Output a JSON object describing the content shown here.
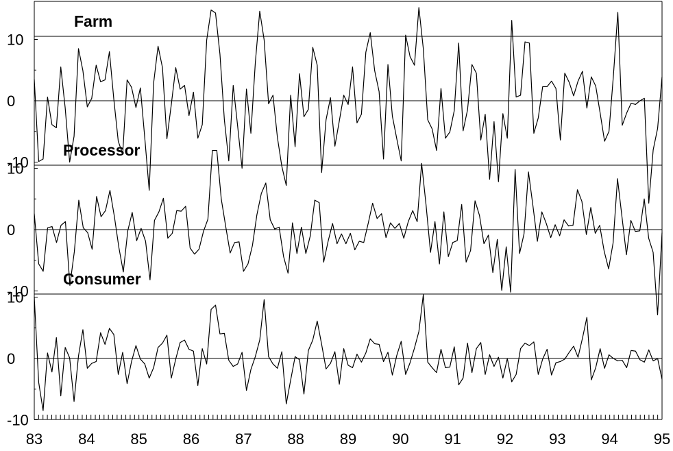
{
  "chart_data": {
    "type": "line",
    "x_ticks": [
      "83",
      "84",
      "85",
      "86",
      "87",
      "88",
      "89",
      "90",
      "91",
      "92",
      "93",
      "94",
      "95"
    ],
    "xlim": [
      83,
      95
    ],
    "panels": [
      {
        "title": "Farm",
        "ylim": [
          -10,
          10
        ],
        "y_ticks": [
          "10",
          "0",
          "-10"
        ],
        "values": [
          3.5,
          -9.9,
          -9.5,
          0.6,
          -3.9,
          -4.4,
          5.5,
          -1.2,
          -10,
          -5.8,
          8.5,
          4.9,
          -1.0,
          0.4,
          5.8,
          3.1,
          3.4,
          8.0,
          0.2,
          -6.6,
          -8.7,
          3.4,
          2.2,
          -1.1,
          2.1,
          -6.1,
          -14.6,
          2.9,
          8.9,
          5.4,
          -6.2,
          -0.6,
          5.4,
          1.9,
          2.5,
          -2.4,
          1.4,
          -6.1,
          -3.9,
          9.9,
          14.8,
          14.3,
          7.6,
          -3.1,
          -9.8,
          2.5,
          -4.1,
          -11.0,
          1.9,
          -5.3,
          6.2,
          14.6,
          9.9,
          -0.5,
          0.9,
          -6.0,
          -10.7,
          -13.8,
          0.9,
          -7.5,
          4.4,
          -2.6,
          -1.4,
          8.7,
          5.8,
          -11.7,
          -3.1,
          0.5,
          -7.4,
          -3.3,
          0.9,
          -0.6,
          5.5,
          -3.6,
          -2.2,
          7.9,
          11.1,
          4.9,
          1.5,
          -9.5,
          5.9,
          -2.5,
          -6.2,
          -9.8,
          10.7,
          7.2,
          5.8,
          15.2,
          8.5,
          -3.1,
          -4.6,
          -8.1,
          2.0,
          -6.1,
          -5.1,
          -1.6,
          9.4,
          -4.9,
          -1.5,
          5.9,
          4.5,
          -6.4,
          -2.2,
          -12.8,
          -3.4,
          -13.2,
          -2.1,
          -6.1,
          13.1,
          0.6,
          0.9,
          9.6,
          9.4,
          -5.3,
          -2.8,
          2.3,
          2.3,
          3.2,
          2.0,
          -6.4,
          4.5,
          3.0,
          0.8,
          3.2,
          4.8,
          -1.2,
          3.9,
          2.4,
          -2.0,
          -6.6,
          -5.0,
          4.1,
          14.4,
          -4.0,
          -2.0,
          -0.4,
          -0.6,
          0,
          0.4,
          -16.7,
          -8.0,
          -4.5,
          3.9
        ]
      },
      {
        "title": "Processor",
        "ylim": [
          -10,
          10
        ],
        "y_ticks": [
          "10",
          "0",
          "-10"
        ],
        "values": [
          2.6,
          -5.6,
          -6.8,
          0.3,
          0.5,
          -2.1,
          0.7,
          1.3,
          -9.1,
          -3.6,
          4.8,
          0.3,
          -0.5,
          -3.2,
          5.4,
          2.1,
          3.1,
          6.4,
          2.1,
          -2.9,
          -6.9,
          -0.2,
          2.8,
          -1.8,
          0.2,
          -1.9,
          -8.2,
          1.5,
          2.9,
          5.1,
          -1.4,
          -0.6,
          3.1,
          3.0,
          3.8,
          -3.0,
          -4.0,
          -3.2,
          -0.3,
          1.7,
          12.9,
          12.9,
          5.0,
          0.5,
          -3.8,
          -2.1,
          -2.0,
          -6.8,
          -5.6,
          -2.6,
          2.4,
          5.9,
          7.6,
          1.6,
          0.1,
          0.4,
          -4.4,
          -7.1,
          1.1,
          -3.9,
          0.4,
          -3.9,
          -1.0,
          4.8,
          4.4,
          -5.3,
          -1.9,
          1.0,
          -2.3,
          -0.7,
          -2.3,
          -0.6,
          -3.3,
          -1.9,
          -2.1,
          1.0,
          4.3,
          1.8,
          2.6,
          -1.3,
          1.1,
          0.2,
          1.0,
          -1.4,
          1.3,
          3.1,
          1.3,
          10.8,
          4.0,
          -3.7,
          1.3,
          -5.6,
          2.9,
          -4.4,
          -2.1,
          -1.8,
          4.1,
          -5.3,
          -3.4,
          4.7,
          2.3,
          -2.3,
          -0.9,
          -7.0,
          -1.6,
          -9.9,
          -2.8,
          -10.2,
          9.8,
          -3.9,
          -0.7,
          9.4,
          3.9,
          -1.9,
          2.9,
          1.0,
          -1.3,
          0.8,
          -1.0,
          1.6,
          0.6,
          0.7,
          6.5,
          4.6,
          -0.8,
          3.6,
          -0.6,
          0.7,
          -3.5,
          -6.4,
          -2.2,
          8.3,
          2.1,
          -4.1,
          1.5,
          -0.3,
          -0.2,
          5.0,
          -1.4,
          -3.7,
          -13.9,
          -0.5
        ]
      },
      {
        "title": "Consumer",
        "ylim": [
          -10,
          10
        ],
        "y_ticks": [
          "10",
          "0",
          "-10"
        ],
        "values": [
          10,
          -3.9,
          -8.5,
          0.9,
          -2.2,
          3.4,
          -6.1,
          1.8,
          0.1,
          -7.0,
          0.4,
          4.7,
          -1.6,
          -0.8,
          -0.5,
          4.2,
          2.3,
          4.9,
          3.9,
          -2.6,
          1.0,
          -4.1,
          -0.5,
          2.1,
          -0.1,
          -0.9,
          -3.2,
          -1.5,
          1.8,
          2.5,
          3.8,
          -3.2,
          -0.1,
          2.6,
          3.0,
          1.5,
          1.2,
          -4.4,
          1.6,
          -0.9,
          8.0,
          8.7,
          4.0,
          4.1,
          -0.3,
          -1.3,
          -0.9,
          1.0,
          -5.2,
          -1.8,
          0.3,
          3.0,
          9.6,
          0.3,
          -0.9,
          -1.6,
          1.1,
          -7.4,
          -3.5,
          0.3,
          -0.2,
          -5.8,
          1.3,
          3.0,
          6.1,
          2.3,
          -1.7,
          -0.8,
          1.1,
          -4.2,
          1.6,
          -1.1,
          -1.5,
          0.7,
          -0.6,
          0.9,
          3.2,
          2.4,
          2.3,
          -0.5,
          1.0,
          -2.7,
          0.5,
          2.8,
          -2.6,
          -0.7,
          1.7,
          4.4,
          10.4,
          -0.6,
          -1.5,
          -2.3,
          1.5,
          -1.5,
          -1.4,
          1.9,
          -4.3,
          -3.2,
          2.5,
          -2.3,
          1.6,
          2.6,
          -2.6,
          0.6,
          -1.3,
          0.2,
          -3.2,
          0,
          -3.8,
          -2.6,
          1.6,
          2.5,
          2.1,
          2.7,
          -2.6,
          -0.1,
          1.5,
          -2.7,
          -0.7,
          -0.5,
          -0.1,
          1.0,
          2.0,
          0.2,
          3.3,
          6.7,
          -3.5,
          -1.5,
          1.6,
          -1.6,
          0.6,
          0,
          -0.4,
          -0.3,
          -1.5,
          1.3,
          1.2,
          -0.2,
          -0.6,
          1.4,
          -0.4,
          0,
          -3.4
        ]
      }
    ]
  }
}
